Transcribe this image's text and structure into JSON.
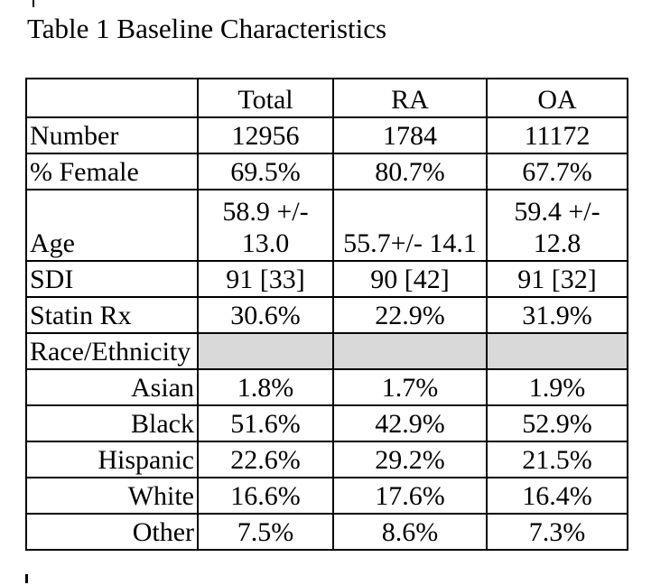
{
  "title": "Table 1 Baseline Characteristics",
  "colors": {
    "shaded_cell": "#d9d9d9",
    "border": "#000000",
    "text": "#000000",
    "background": "#ffffff"
  },
  "table": {
    "columns": [
      "",
      "Total",
      "RA",
      "OA"
    ],
    "rows": [
      {
        "label": "Number",
        "values": [
          "12956",
          "1784",
          "11172"
        ],
        "shaded": false,
        "indent": false,
        "tall": false
      },
      {
        "label": "% Female",
        "values": [
          "69.5%",
          "80.7%",
          "67.7%"
        ],
        "shaded": false,
        "indent": false,
        "tall": false
      },
      {
        "label": "Age",
        "values": [
          "58.9 +/-\n13.0",
          "55.7+/- 14.1",
          "59.4 +/-\n12.8"
        ],
        "shaded": false,
        "indent": false,
        "tall": true
      },
      {
        "label": "SDI",
        "values": [
          "91 [33]",
          "90 [42]",
          "91 [32]"
        ],
        "shaded": false,
        "indent": false,
        "tall": false
      },
      {
        "label": "Statin Rx",
        "values": [
          "30.6%",
          "22.9%",
          "31.9%"
        ],
        "shaded": false,
        "indent": false,
        "tall": false
      },
      {
        "label": "Race/Ethnicity",
        "values": [
          "",
          "",
          ""
        ],
        "shaded": true,
        "indent": false,
        "tall": false
      },
      {
        "label": "Asian",
        "values": [
          "1.8%",
          "1.7%",
          "1.9%"
        ],
        "shaded": false,
        "indent": true,
        "tall": false
      },
      {
        "label": "Black",
        "values": [
          "51.6%",
          "42.9%",
          "52.9%"
        ],
        "shaded": false,
        "indent": true,
        "tall": false
      },
      {
        "label": "Hispanic",
        "values": [
          "22.6%",
          "29.2%",
          "21.5%"
        ],
        "shaded": false,
        "indent": true,
        "tall": false
      },
      {
        "label": "White",
        "values": [
          "16.6%",
          "17.6%",
          "16.4%"
        ],
        "shaded": false,
        "indent": true,
        "tall": false
      },
      {
        "label": "Other",
        "values": [
          "7.5%",
          "8.6%",
          "7.3%"
        ],
        "shaded": false,
        "indent": true,
        "tall": false
      }
    ]
  }
}
